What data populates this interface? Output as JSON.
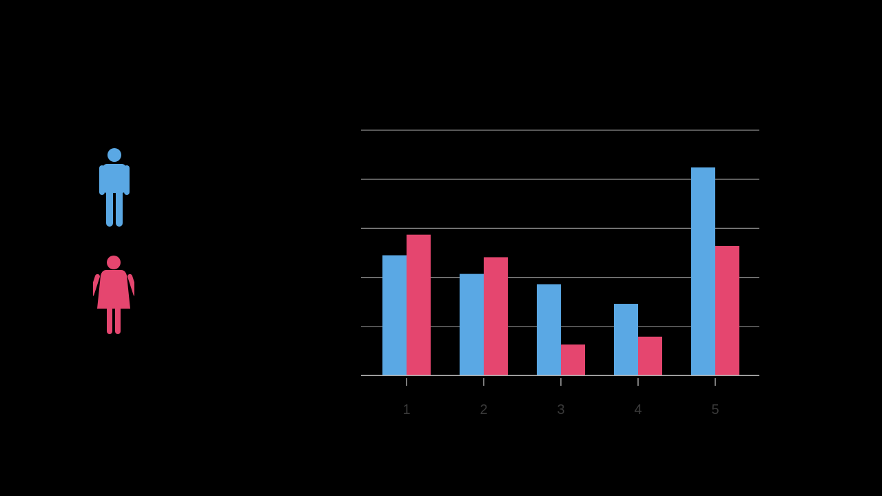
{
  "legend": [
    {
      "icon": "male-person-icon",
      "color": "#5aa8e4"
    },
    {
      "icon": "female-person-icon",
      "color": "#e5466f"
    }
  ],
  "colors": {
    "background": "#000000",
    "gridline": "#8c8c8c",
    "axis": "#cfcfcf",
    "tick_label": "#3a3a3a"
  },
  "chart_data": {
    "type": "bar",
    "categories": [
      "1",
      "2",
      "3",
      "4",
      "5"
    ],
    "series": [
      {
        "color": "#5aa8e4",
        "values": [
          2.45,
          2.07,
          1.86,
          1.46,
          4.24
        ]
      },
      {
        "color": "#e5466f",
        "values": [
          2.87,
          2.41,
          0.63,
          0.79,
          2.64
        ]
      }
    ],
    "ylim": [
      0,
      5
    ],
    "yticks": [
      0,
      1,
      2,
      3,
      4,
      5
    ],
    "grid": true,
    "title": "",
    "xlabel": "",
    "ylabel": ""
  }
}
